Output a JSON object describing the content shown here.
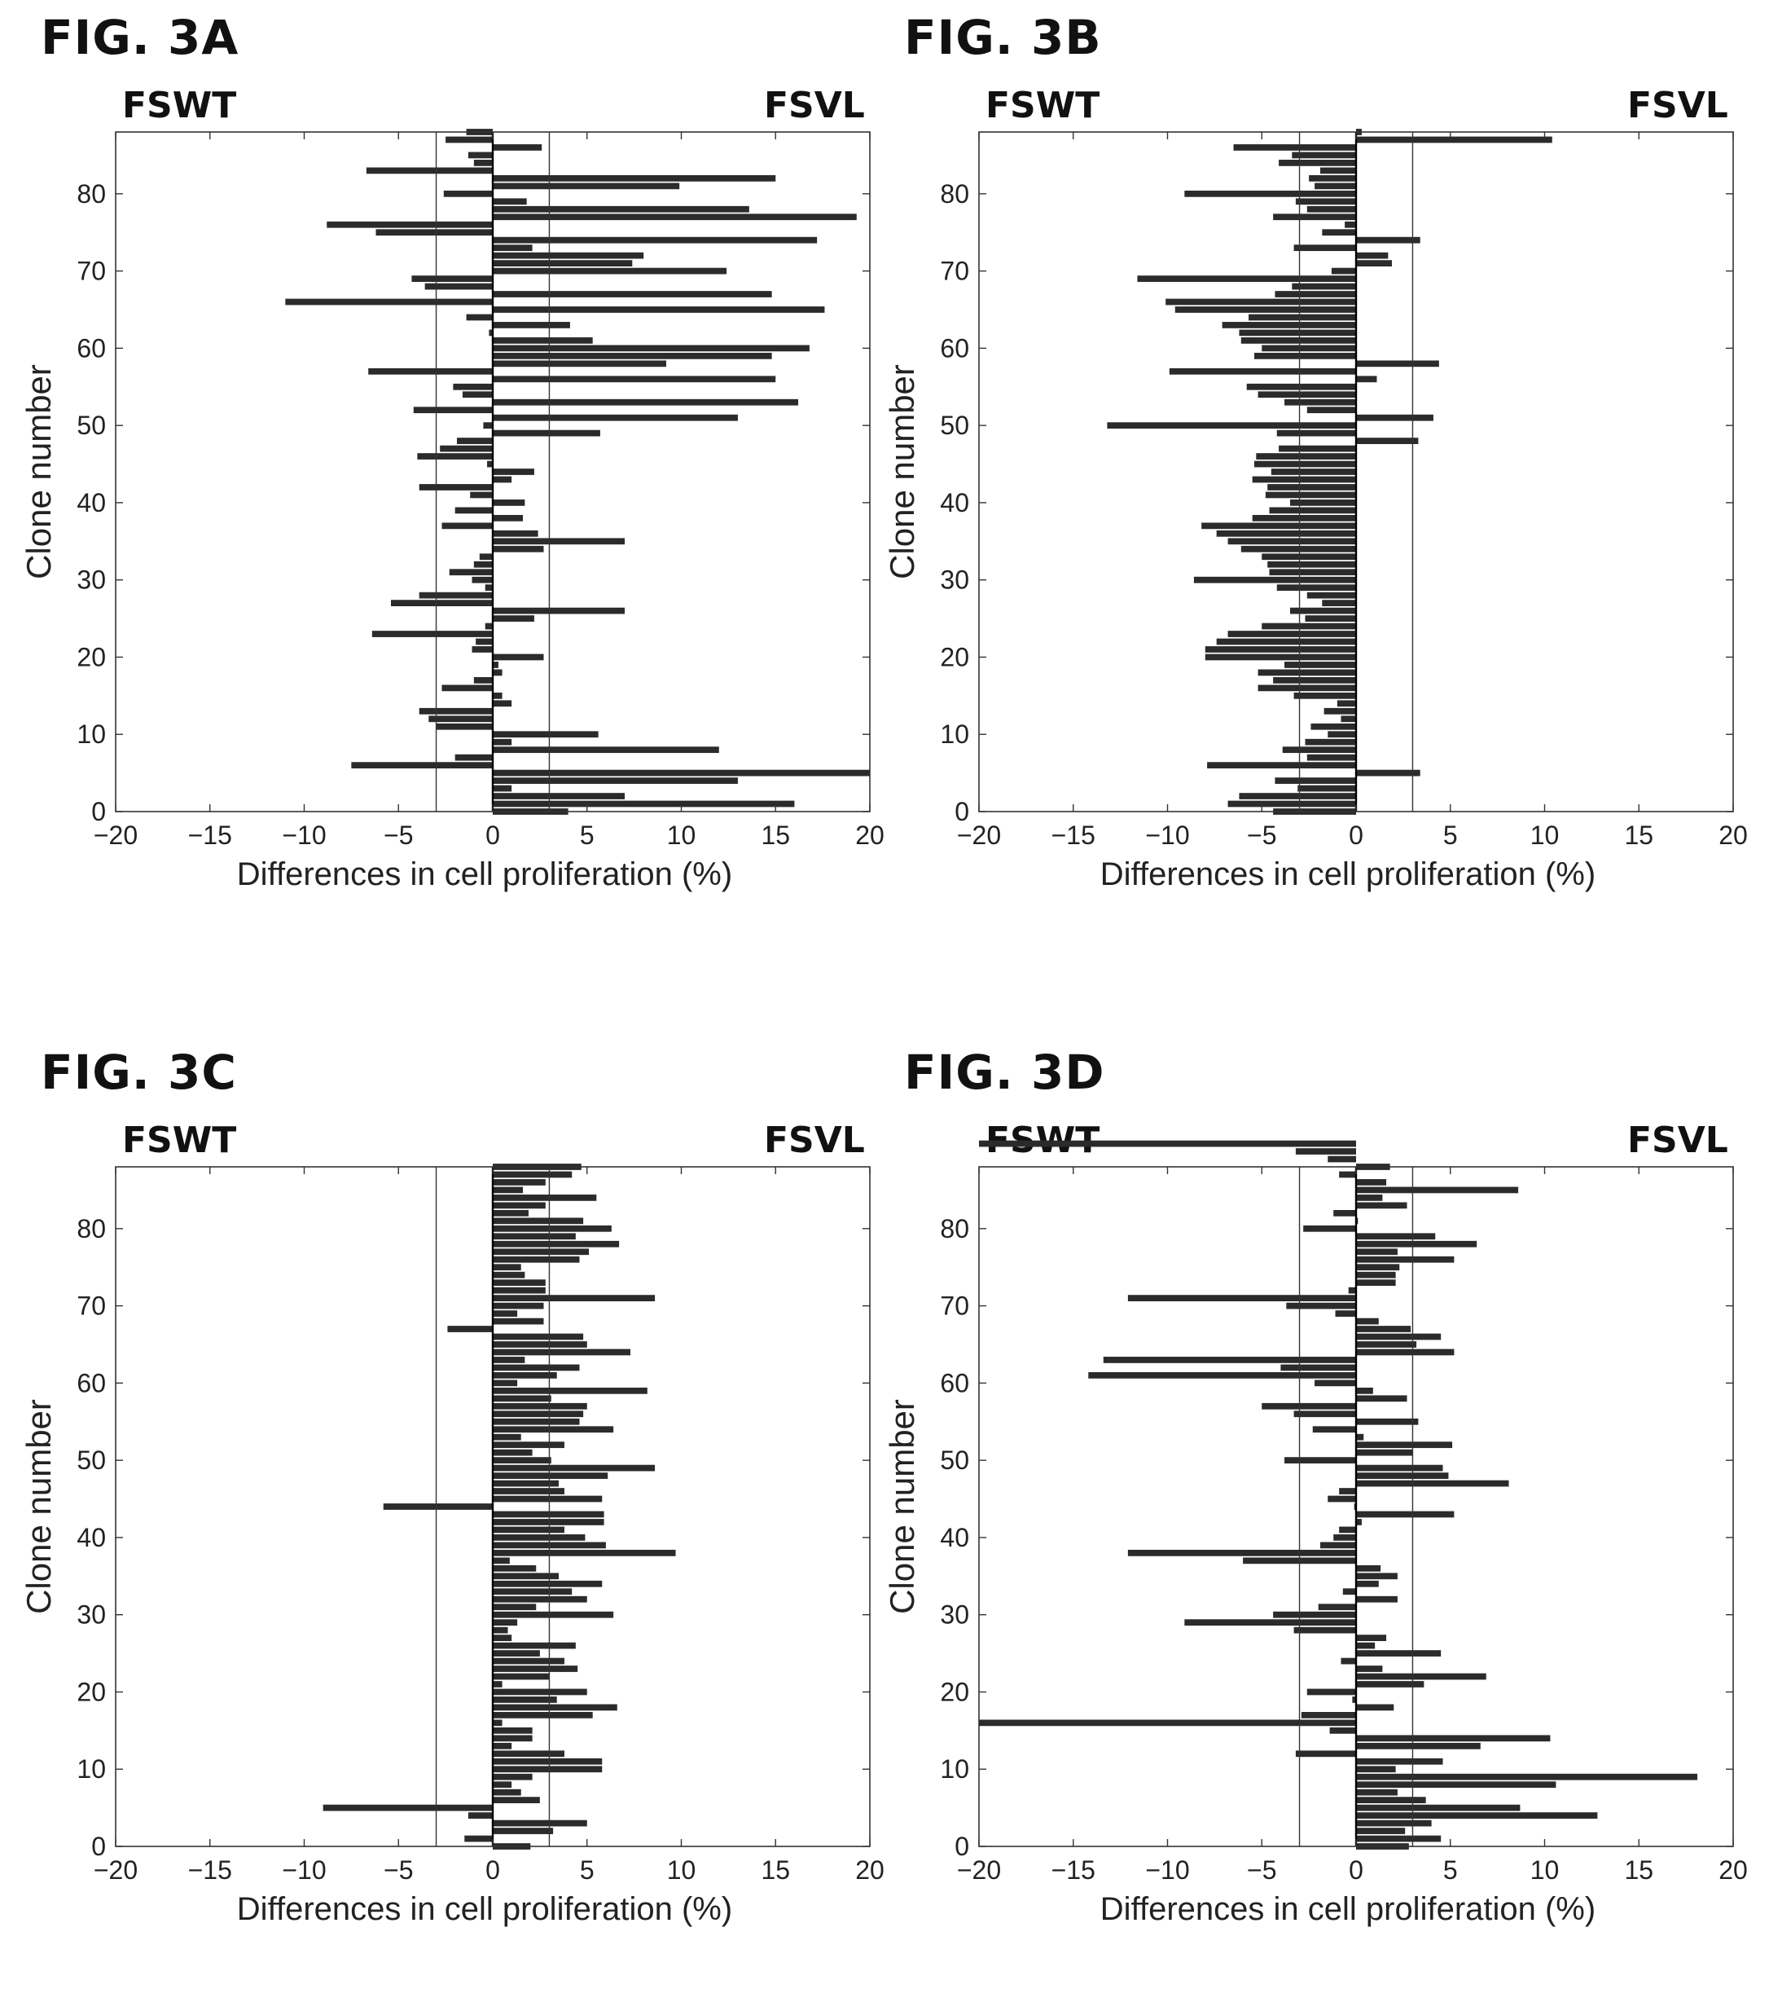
{
  "panels": [
    {
      "title": "FIG. 3A",
      "left_label": "FSWT",
      "right_label": "FSVL",
      "chart": {
        "type": "bar",
        "orientation": "horizontal",
        "xlabel": "Differences in cell proliferation (%)",
        "ylabel": "Clone number",
        "xlim": [
          -20,
          20
        ],
        "ylim": [
          0,
          88
        ],
        "xticks": [
          -20,
          -15,
          -10,
          -5,
          0,
          5,
          10,
          15,
          20
        ],
        "yticks": [
          0,
          10,
          20,
          30,
          40,
          50,
          60,
          70,
          80
        ],
        "threshold_lines": [
          -3,
          3
        ],
        "grid": false,
        "values": [
          4,
          16,
          7,
          1,
          13,
          20,
          -7.5,
          -2,
          12,
          1,
          5.6,
          -3,
          -3.4,
          -3.9,
          1,
          0.5,
          -2.7,
          -1,
          0.5,
          0.3,
          2.7,
          -1.1,
          -0.9,
          -6.4,
          -0.4,
          2.2,
          7,
          -5.4,
          -3.9,
          -0.4,
          -1.1,
          -2.3,
          -1,
          -0.7,
          2.7,
          7,
          2.4,
          -2.7,
          1.6,
          -2,
          1.7,
          -1.2,
          -3.9,
          1,
          2.2,
          -0.3,
          -4,
          -2.8,
          -1.9,
          5.7,
          -0.5,
          13,
          -4.2,
          16.2,
          -1.6,
          -2.1,
          15,
          -6.6,
          9.2,
          14.8,
          16.8,
          5.3,
          -0.2,
          4.1,
          -1.4,
          17.6,
          -11,
          14.8,
          -3.6,
          -4.3,
          12.4,
          7.4,
          8,
          2.1,
          17.2,
          -6.2,
          -8.8,
          19.3,
          13.6,
          1.8,
          -2.6,
          9.9,
          15,
          -6.7,
          -1,
          -1.3,
          2.6,
          -2.5,
          -1.4
        ]
      }
    },
    {
      "title": "FIG. 3B",
      "left_label": "FSWT",
      "right_label": "FSVL",
      "chart": {
        "type": "bar",
        "orientation": "horizontal",
        "xlabel": "Differences in cell proliferation (%)",
        "ylabel": "Clone number",
        "xlim": [
          -20,
          20
        ],
        "ylim": [
          0,
          88
        ],
        "xticks": [
          -20,
          -15,
          -10,
          -5,
          0,
          5,
          10,
          15,
          20
        ],
        "yticks": [
          0,
          10,
          20,
          30,
          40,
          50,
          60,
          70,
          80
        ],
        "threshold_lines": [
          -3,
          3
        ],
        "grid": false,
        "values": [
          -4.4,
          -6.8,
          -6.2,
          -3.1,
          -4.3,
          3.4,
          -7.9,
          -2.6,
          -3.9,
          -2.7,
          -1.5,
          -2.4,
          -0.8,
          -1.7,
          -1,
          -3.3,
          -5.2,
          -4.4,
          -5.2,
          -3.8,
          -8,
          -8,
          -7.4,
          -6.8,
          -5,
          -2.7,
          -3.5,
          -1.8,
          -2.6,
          -4.2,
          -8.6,
          -4.6,
          -4.7,
          -5,
          -6.1,
          -6.8,
          -7.4,
          -8.2,
          -5.5,
          -4.6,
          -3.5,
          -4.8,
          -4.7,
          -5.5,
          -4.5,
          -5.4,
          -5.3,
          -4.1,
          3.3,
          -4.2,
          -13.2,
          4.1,
          -2.6,
          -3.8,
          -5.2,
          -5.8,
          1.1,
          -9.9,
          4.4,
          -5.4,
          -5,
          -6.1,
          -6.2,
          -7.1,
          -5.7,
          -9.6,
          -10.1,
          -4.3,
          -3.4,
          -11.6,
          -1.3,
          1.9,
          1.7,
          -3.3,
          3.4,
          -1.8,
          -0.6,
          -4.4,
          -2.6,
          -3.2,
          -9.1,
          -2.2,
          -2.5,
          -1.9,
          -4.1,
          -3.4,
          -6.5,
          10.4,
          0.3
        ]
      }
    },
    {
      "title": "FIG. 3C",
      "left_label": "FSWT",
      "right_label": "FSVL",
      "chart": {
        "type": "bar",
        "orientation": "horizontal",
        "xlabel": "Differences in cell proliferation (%)",
        "ylabel": "Clone number",
        "xlim": [
          -20,
          20
        ],
        "ylim": [
          0,
          88
        ],
        "xticks": [
          -20,
          -15,
          -10,
          -5,
          0,
          5,
          10,
          15,
          20
        ],
        "yticks": [
          0,
          10,
          20,
          30,
          40,
          50,
          60,
          70,
          80
        ],
        "threshold_lines": [
          -3,
          3
        ],
        "grid": false,
        "values": [
          2,
          -1.5,
          3.2,
          5,
          -1.3,
          -9,
          2.5,
          1.5,
          1,
          2.1,
          5.8,
          5.8,
          3.8,
          1,
          2.1,
          2.1,
          0.5,
          5.3,
          6.6,
          3.4,
          5,
          0.5,
          3,
          4.5,
          3.8,
          2.5,
          4.4,
          1,
          0.8,
          1.3,
          6.4,
          2.3,
          5,
          4.2,
          5.8,
          3.5,
          2.3,
          0.9,
          9.7,
          6,
          4.9,
          3.8,
          5.9,
          5.9,
          -5.8,
          5.8,
          3.8,
          3.5,
          6.1,
          8.6,
          3.1,
          2.1,
          3.8,
          1.5,
          6.4,
          4.6,
          4.8,
          5,
          3.1,
          8.2,
          1.3,
          3.4,
          4.6,
          1.7,
          7.3,
          5,
          4.8,
          -2.4,
          2.7,
          1.3,
          2.7,
          8.6,
          2.8,
          2.8,
          1.7,
          1.5,
          4.6,
          5.1,
          6.7,
          4.4,
          6.3,
          4.8,
          1.9,
          2.8,
          5.5,
          1.6,
          2.8,
          4.2,
          4.7
        ]
      }
    },
    {
      "title": "FIG. 3D",
      "left_label": "FSWT",
      "right_label": "FSVL",
      "chart": {
        "type": "bar",
        "orientation": "horizontal",
        "xlabel": "Differences in cell proliferation (%)",
        "ylabel": "Clone number",
        "xlim": [
          -20,
          20
        ],
        "ylim": [
          0,
          88
        ],
        "xticks": [
          -20,
          -15,
          -10,
          -5,
          0,
          5,
          10,
          15,
          20
        ],
        "yticks": [
          0,
          10,
          20,
          30,
          40,
          50,
          60,
          70,
          80
        ],
        "threshold_lines": [
          -3,
          3
        ],
        "grid": false,
        "values": [
          2.8,
          4.5,
          2.6,
          4,
          12.8,
          8.7,
          3.7,
          2.2,
          10.6,
          18.1,
          2.1,
          4.6,
          -3.2,
          6.6,
          10.3,
          -1.4,
          -20,
          -2.9,
          2,
          -0.2,
          -2.6,
          3.6,
          6.9,
          1.4,
          -0.8,
          4.5,
          1,
          1.6,
          -3.3,
          -9.1,
          -4.4,
          -2,
          2.2,
          -0.7,
          1.2,
          2.2,
          1.3,
          -6,
          -12.1,
          -1.9,
          -1.2,
          -0.9,
          0.3,
          5.2,
          -0.1,
          -1.5,
          -0.9,
          8.1,
          4.9,
          4.6,
          -3.8,
          3,
          5.1,
          0.4,
          -2.3,
          3.3,
          -3.3,
          -5,
          2.7,
          0.9,
          -2.2,
          -14.2,
          -4,
          -13.4,
          5.2,
          3.2,
          4.5,
          2.9,
          1.2,
          -1.1,
          -3.7,
          -12.1,
          -0.4,
          2.1,
          2.1,
          2.3,
          5.2,
          2.2,
          6.4,
          4.2,
          -2.8,
          0.1,
          -1.2,
          2.7,
          1.4,
          8.6,
          1.6,
          -0.9,
          1.8,
          -1.5,
          -3.2,
          -20
        ]
      }
    }
  ]
}
